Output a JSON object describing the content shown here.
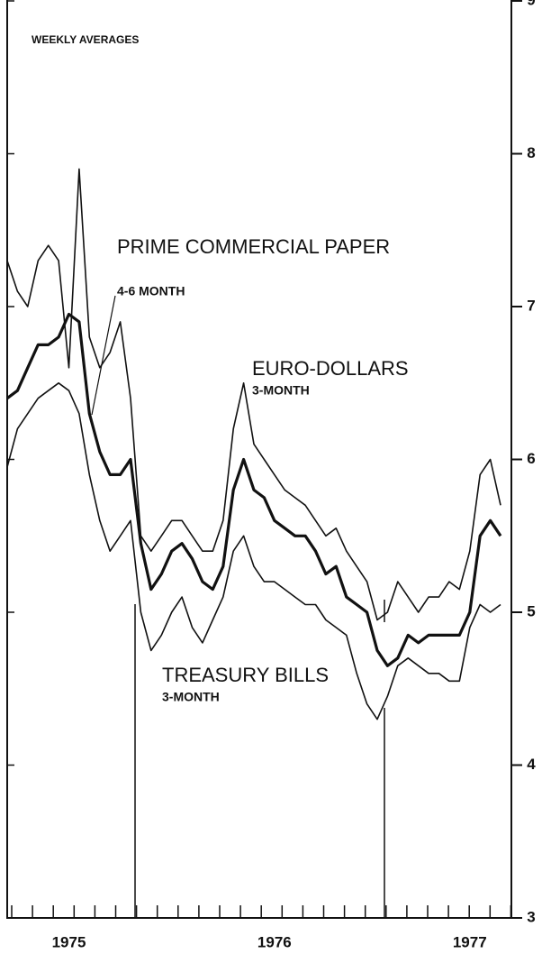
{
  "chart_data": {
    "type": "line",
    "title": "WEEKLY AVERAGES",
    "categories": [
      null,
      null,
      null,
      null,
      null,
      null,
      "1975",
      null,
      null,
      null,
      null,
      null,
      null,
      null,
      null,
      null,
      null,
      null,
      null,
      null,
      null,
      null,
      null,
      null,
      null,
      null,
      "1976",
      null,
      null,
      null,
      null,
      null,
      null,
      null,
      null,
      null,
      null,
      null,
      null,
      null,
      null,
      null,
      null,
      null,
      null,
      "1977",
      null,
      null,
      null
    ],
    "series": [
      {
        "name": "PRIME COMMERCIAL PAPER",
        "subtitle": "4-6 MONTH",
        "color": "#111111",
        "width": 1.6,
        "values": [
          7.3,
          7.1,
          7.0,
          7.3,
          7.4,
          7.3,
          6.6,
          7.9,
          6.8,
          6.6,
          6.7,
          6.9,
          6.4,
          5.5,
          5.4,
          5.5,
          5.6,
          5.6,
          5.5,
          5.4,
          5.4,
          5.6,
          6.2,
          6.5,
          6.1,
          6.0,
          5.9,
          5.8,
          5.75,
          5.7,
          5.6,
          5.5,
          5.55,
          5.4,
          5.3,
          5.2,
          4.95,
          5.0,
          5.2,
          5.1,
          5.0,
          5.1,
          5.1,
          5.2,
          5.15,
          5.4,
          5.9,
          6.0,
          5.7
        ]
      },
      {
        "name": "EURO-DOLLARS",
        "subtitle": "3-MONTH",
        "color": "#111111",
        "width": 3.2,
        "values": [
          6.4,
          6.45,
          6.6,
          6.75,
          6.75,
          6.8,
          6.95,
          6.9,
          6.3,
          6.05,
          5.9,
          5.9,
          6.0,
          5.45,
          5.15,
          5.25,
          5.4,
          5.45,
          5.35,
          5.2,
          5.15,
          5.3,
          5.8,
          6.0,
          5.8,
          5.75,
          5.6,
          5.55,
          5.5,
          5.5,
          5.4,
          5.25,
          5.3,
          5.1,
          5.05,
          5.0,
          4.75,
          4.65,
          4.7,
          4.85,
          4.8,
          4.85,
          4.85,
          4.85,
          4.85,
          5.0,
          5.5,
          5.6,
          5.5
        ]
      },
      {
        "name": "TREASURY BILLS",
        "subtitle": "3-MONTH",
        "color": "#111111",
        "width": 1.6,
        "values": [
          5.95,
          6.2,
          6.3,
          6.4,
          6.45,
          6.5,
          6.45,
          6.3,
          5.9,
          5.6,
          5.4,
          5.5,
          5.6,
          5.0,
          4.75,
          4.85,
          5.0,
          5.1,
          4.9,
          4.8,
          4.95,
          5.1,
          5.4,
          5.5,
          5.3,
          5.2,
          5.2,
          5.15,
          5.1,
          5.05,
          5.05,
          4.95,
          4.9,
          4.85,
          4.6,
          4.4,
          4.3,
          4.45,
          4.65,
          4.7,
          4.65,
          4.6,
          4.6,
          4.55,
          4.55,
          4.9,
          5.05,
          5.0,
          5.05
        ]
      }
    ],
    "ylim": [
      3,
      9
    ],
    "yticks": [
      3,
      4,
      5,
      6,
      7,
      8,
      9
    ]
  }
}
